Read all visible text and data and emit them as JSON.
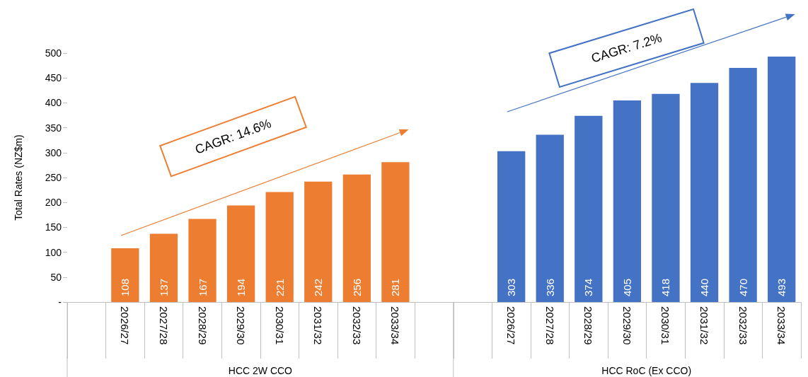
{
  "chart_data": {
    "type": "bar",
    "ylabel": "Total Rates (NZ$m)",
    "categories": [
      null,
      "2026/27",
      "2027/28",
      "2028/29",
      "2029/30",
      "2030/31",
      "2031/32",
      "2032/33",
      "2033/34",
      null,
      null,
      "2026/27",
      "2027/28",
      "2028/29",
      "2029/30",
      "2030/31",
      "2031/32",
      "2032/33",
      "2033/34"
    ],
    "series": [
      {
        "color": "#ed7d31",
        "values": [
          null,
          108,
          137,
          167,
          194,
          221,
          242,
          256,
          281,
          null,
          null,
          null,
          null,
          null,
          null,
          null,
          null,
          null,
          null
        ]
      },
      {
        "color": "#4472c4",
        "values": [
          null,
          null,
          null,
          null,
          null,
          null,
          null,
          null,
          null,
          null,
          null,
          303,
          336,
          374,
          405,
          418,
          440,
          470,
          493
        ]
      }
    ],
    "ylim": [
      0,
      500
    ],
    "yticks": [
      {
        "value": 0,
        "label": "-"
      },
      50,
      100,
      150,
      200,
      250,
      300,
      350,
      400,
      450,
      500
    ],
    "grid": false,
    "data_labels": true,
    "annotations": [
      "CAGR: 14.6%",
      "CAGR: 7.2%",
      "HCC 2W CCO",
      "HCC RoC (Ex CCO)"
    ]
  }
}
